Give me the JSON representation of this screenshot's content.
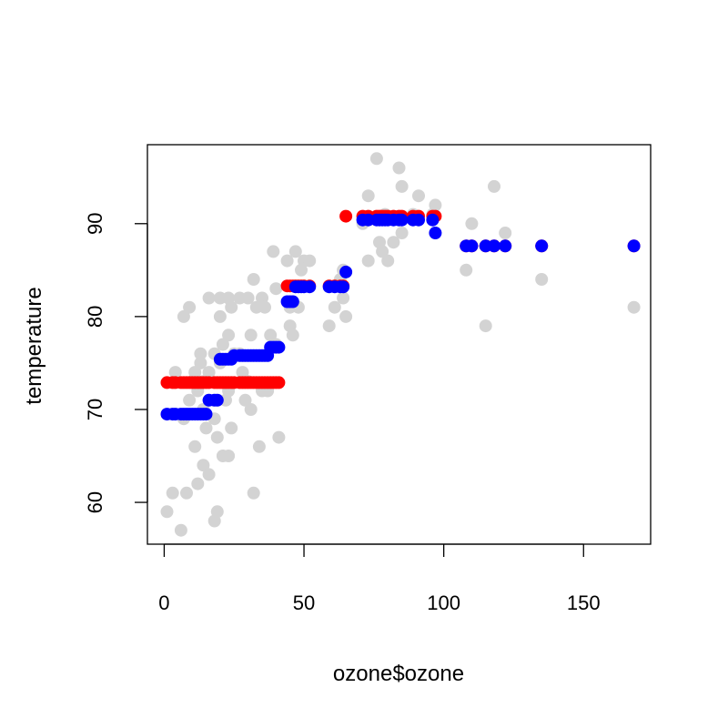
{
  "chart_data": {
    "type": "scatter",
    "title": "",
    "xlabel": "ozone$ozone",
    "ylabel": "temperature",
    "xlim": [
      -6,
      174
    ],
    "ylim": [
      55.5,
      98.5
    ],
    "xticks": [
      0,
      50,
      100,
      150
    ],
    "yticks": [
      60,
      70,
      80,
      90
    ],
    "grid": false,
    "legend": "none",
    "series": [
      {
        "color": "#d3d3d3",
        "points": [
          [
            1,
            59
          ],
          [
            3,
            61
          ],
          [
            4,
            74
          ],
          [
            6,
            57
          ],
          [
            7,
            69
          ],
          [
            7,
            80
          ],
          [
            8,
            61
          ],
          [
            9,
            81
          ],
          [
            9,
            71
          ],
          [
            10,
            73
          ],
          [
            11,
            74
          ],
          [
            11,
            66
          ],
          [
            12,
            62
          ],
          [
            12,
            72
          ],
          [
            13,
            75
          ],
          [
            13,
            76
          ],
          [
            14,
            64
          ],
          [
            14,
            70
          ],
          [
            14,
            73
          ],
          [
            15,
            68
          ],
          [
            16,
            63
          ],
          [
            16,
            74
          ],
          [
            16,
            82
          ],
          [
            18,
            69
          ],
          [
            18,
            58
          ],
          [
            18,
            76
          ],
          [
            19,
            59
          ],
          [
            19,
            67
          ],
          [
            20,
            82
          ],
          [
            20,
            75
          ],
          [
            20,
            80
          ],
          [
            21,
            77
          ],
          [
            21,
            65
          ],
          [
            22,
            71
          ],
          [
            23,
            82
          ],
          [
            23,
            72
          ],
          [
            23,
            78
          ],
          [
            23,
            65
          ],
          [
            24,
            68
          ],
          [
            24,
            81
          ],
          [
            25,
            76
          ],
          [
            27,
            76
          ],
          [
            27,
            82
          ],
          [
            28,
            74
          ],
          [
            29,
            71
          ],
          [
            30,
            73
          ],
          [
            30,
            82
          ],
          [
            31,
            70
          ],
          [
            31,
            78
          ],
          [
            32,
            61
          ],
          [
            32,
            84
          ],
          [
            33,
            81
          ],
          [
            34,
            66
          ],
          [
            35,
            82
          ],
          [
            35,
            72
          ],
          [
            36,
            81
          ],
          [
            37,
            72
          ],
          [
            38,
            78
          ],
          [
            39,
            87
          ],
          [
            40,
            83
          ],
          [
            40,
            77
          ],
          [
            41,
            67
          ],
          [
            44,
            86
          ],
          [
            45,
            79
          ],
          [
            45,
            81
          ],
          [
            46,
            78
          ],
          [
            47,
            87
          ],
          [
            48,
            81
          ],
          [
            49,
            85
          ],
          [
            50,
            86
          ],
          [
            52,
            86
          ],
          [
            59,
            79
          ],
          [
            61,
            81
          ],
          [
            63,
            84
          ],
          [
            64,
            82
          ],
          [
            64,
            85
          ],
          [
            65,
            80
          ],
          [
            71,
            90
          ],
          [
            73,
            86
          ],
          [
            73,
            93
          ],
          [
            76,
            97
          ],
          [
            77,
            88
          ],
          [
            78,
            87
          ],
          [
            79,
            91
          ],
          [
            80,
            86
          ],
          [
            82,
            88
          ],
          [
            84,
            96
          ],
          [
            85,
            94
          ],
          [
            85,
            89
          ],
          [
            89,
            91
          ],
          [
            91,
            93
          ],
          [
            96,
            91
          ],
          [
            97,
            92
          ],
          [
            108,
            85
          ],
          [
            110,
            90
          ],
          [
            115,
            79
          ],
          [
            118,
            94
          ],
          [
            122,
            89
          ],
          [
            135,
            84
          ],
          [
            168,
            81
          ]
        ]
      },
      {
        "color": "#ff0000",
        "points": [
          [
            1,
            72.9
          ],
          [
            3,
            72.9
          ],
          [
            4,
            72.9
          ],
          [
            6,
            72.9
          ],
          [
            7,
            72.9
          ],
          [
            8,
            72.9
          ],
          [
            9,
            72.9
          ],
          [
            10,
            72.9
          ],
          [
            11,
            72.9
          ],
          [
            12,
            72.9
          ],
          [
            13,
            72.9
          ],
          [
            14,
            72.9
          ],
          [
            15,
            72.9
          ],
          [
            16,
            72.9
          ],
          [
            18,
            72.9
          ],
          [
            19,
            72.9
          ],
          [
            20,
            72.9
          ],
          [
            21,
            72.9
          ],
          [
            22,
            72.9
          ],
          [
            23,
            72.9
          ],
          [
            24,
            72.9
          ],
          [
            25,
            72.9
          ],
          [
            27,
            72.9
          ],
          [
            28,
            72.9
          ],
          [
            29,
            72.9
          ],
          [
            30,
            72.9
          ],
          [
            31,
            72.9
          ],
          [
            32,
            72.9
          ],
          [
            33,
            72.9
          ],
          [
            34,
            72.9
          ],
          [
            35,
            72.9
          ],
          [
            36,
            72.9
          ],
          [
            37,
            72.9
          ],
          [
            38,
            72.9
          ],
          [
            39,
            72.9
          ],
          [
            40,
            72.9
          ],
          [
            41,
            72.9
          ],
          [
            44,
            83.3
          ],
          [
            45,
            83.3
          ],
          [
            46,
            83.3
          ],
          [
            47,
            83.3
          ],
          [
            48,
            83.3
          ],
          [
            49,
            83.3
          ],
          [
            50,
            83.3
          ],
          [
            52,
            83.3
          ],
          [
            59,
            83.3
          ],
          [
            61,
            83.3
          ],
          [
            63,
            83.3
          ],
          [
            64,
            83.3
          ],
          [
            65,
            90.8
          ],
          [
            71,
            90.8
          ],
          [
            73,
            90.8
          ],
          [
            76,
            90.8
          ],
          [
            77,
            90.8
          ],
          [
            78,
            90.8
          ],
          [
            79,
            90.8
          ],
          [
            80,
            90.8
          ],
          [
            82,
            90.8
          ],
          [
            84,
            90.8
          ],
          [
            85,
            90.8
          ],
          [
            89,
            90.8
          ],
          [
            91,
            90.8
          ],
          [
            96,
            90.8
          ],
          [
            97,
            90.8
          ],
          [
            108,
            87.6
          ],
          [
            110,
            87.6
          ],
          [
            115,
            87.6
          ],
          [
            118,
            87.6
          ],
          [
            122,
            87.6
          ],
          [
            135,
            87.6
          ],
          [
            168,
            87.6
          ]
        ]
      },
      {
        "color": "#0000ff",
        "points": [
          [
            1,
            69.5
          ],
          [
            3,
            69.5
          ],
          [
            4,
            69.5
          ],
          [
            6,
            69.5
          ],
          [
            7,
            69.5
          ],
          [
            8,
            69.5
          ],
          [
            9,
            69.5
          ],
          [
            10,
            69.5
          ],
          [
            11,
            69.5
          ],
          [
            12,
            69.5
          ],
          [
            13,
            69.5
          ],
          [
            14,
            69.5
          ],
          [
            15,
            69.5
          ],
          [
            16,
            71
          ],
          [
            18,
            71
          ],
          [
            19,
            71
          ],
          [
            20,
            75.4
          ],
          [
            21,
            75.4
          ],
          [
            22,
            75.4
          ],
          [
            23,
            75.4
          ],
          [
            24,
            75.4
          ],
          [
            25,
            75.8
          ],
          [
            27,
            75.8
          ],
          [
            28,
            75.8
          ],
          [
            29,
            75.8
          ],
          [
            30,
            75.8
          ],
          [
            31,
            75.8
          ],
          [
            32,
            75.8
          ],
          [
            33,
            75.8
          ],
          [
            34,
            75.8
          ],
          [
            35,
            75.8
          ],
          [
            36,
            75.8
          ],
          [
            37,
            75.8
          ],
          [
            38,
            76.7
          ],
          [
            39,
            76.7
          ],
          [
            40,
            76.7
          ],
          [
            41,
            76.7
          ],
          [
            44,
            81.6
          ],
          [
            45,
            81.6
          ],
          [
            46,
            81.6
          ],
          [
            47,
            83.2
          ],
          [
            48,
            83.2
          ],
          [
            49,
            83.2
          ],
          [
            50,
            83.2
          ],
          [
            52,
            83.2
          ],
          [
            59,
            83.2
          ],
          [
            61,
            83.2
          ],
          [
            63,
            83.2
          ],
          [
            64,
            83.2
          ],
          [
            65,
            84.8
          ],
          [
            71,
            90.4
          ],
          [
            73,
            90.4
          ],
          [
            76,
            90.4
          ],
          [
            77,
            90.4
          ],
          [
            78,
            90.4
          ],
          [
            79,
            90.4
          ],
          [
            80,
            90.4
          ],
          [
            82,
            90.4
          ],
          [
            84,
            90.4
          ],
          [
            85,
            90.4
          ],
          [
            89,
            90.4
          ],
          [
            91,
            90.4
          ],
          [
            96,
            90.4
          ],
          [
            97,
            89
          ],
          [
            108,
            87.6
          ],
          [
            110,
            87.6
          ],
          [
            115,
            87.6
          ],
          [
            118,
            87.6
          ],
          [
            122,
            87.6
          ],
          [
            135,
            87.6
          ],
          [
            168,
            87.6
          ]
        ]
      }
    ]
  }
}
